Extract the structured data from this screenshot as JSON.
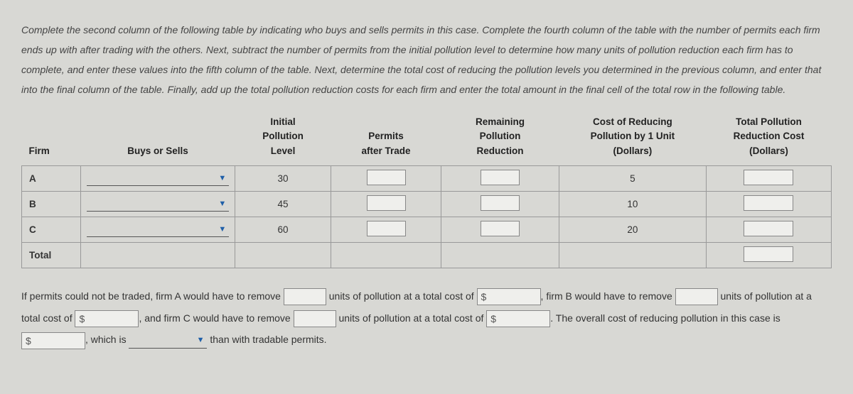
{
  "instructions": "Complete the second column of the following table by indicating who buys and sells permits in this case. Complete the fourth column of the table with the number of permits each firm ends up with after trading with the others. Next, subtract the number of permits from the initial pollution level to determine how many units of pollution reduction each firm has to complete, and enter these values into the fifth column of the table. Next, determine the total cost of reducing the pollution levels you determined in the previous column, and enter that into the final column of the table. Finally, add up the total pollution reduction costs for each firm and enter the total amount in the final cell of the total row in the following table.",
  "headers": {
    "firm": "Firm",
    "buys_sells": "Buys or Sells",
    "initial_l1": "Initial",
    "initial_l2": "Pollution",
    "initial_l3": "Level",
    "permits_l1": "Permits",
    "permits_l2": "after Trade",
    "remaining_l1": "Remaining",
    "remaining_l2": "Pollution",
    "remaining_l3": "Reduction",
    "costunit_l1": "Cost of Reducing",
    "costunit_l2": "Pollution by 1 Unit",
    "costunit_l3": "(Dollars)",
    "totalcost_l1": "Total Pollution",
    "totalcost_l2": "Reduction Cost",
    "totalcost_l3": "(Dollars)"
  },
  "rows": [
    {
      "firm": "A",
      "initial": "30",
      "cost_unit": "5"
    },
    {
      "firm": "B",
      "initial": "45",
      "cost_unit": "10"
    },
    {
      "firm": "C",
      "initial": "60",
      "cost_unit": "20"
    }
  ],
  "total_label": "Total",
  "para": {
    "t1": "If permits could not be traded, firm A would have to remove ",
    "t2": " units of pollution at a total cost of ",
    "t3": ", firm B would have to remove ",
    "t4": " units of pollution at a total cost of ",
    "t5": ", and firm C would have to remove ",
    "t6": " units of pollution at a total cost of ",
    "t7": ". The overall cost of reducing pollution in this case is ",
    "t8": ", which is ",
    "t9": " than with tradable permits."
  },
  "dollar": "$"
}
